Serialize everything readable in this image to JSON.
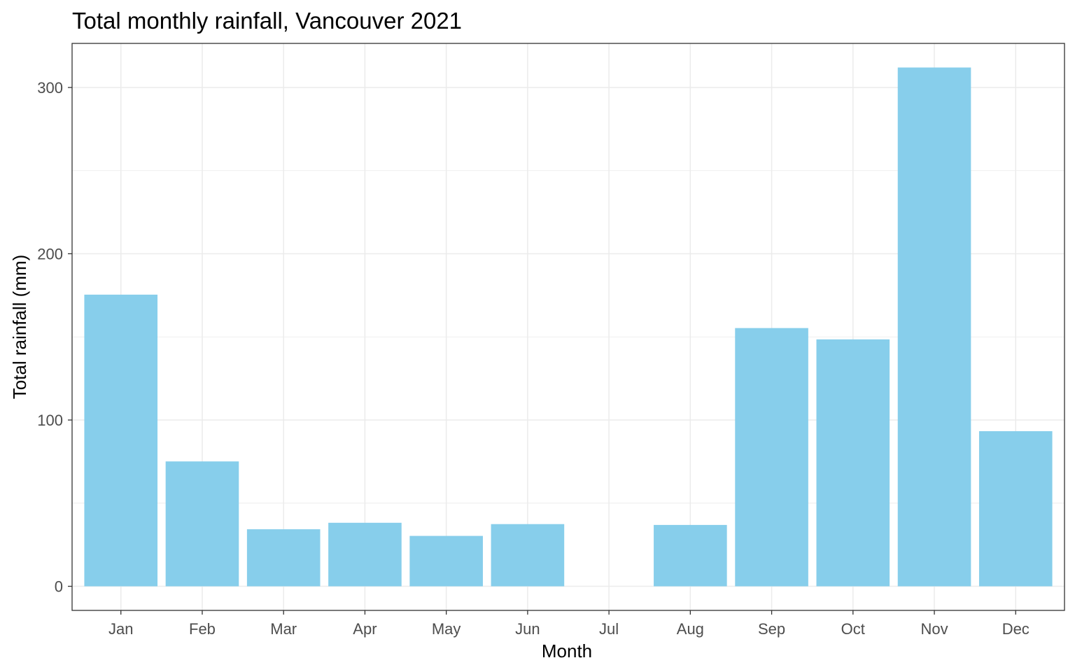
{
  "chart_data": {
    "type": "bar",
    "title": "Total monthly rainfall, Vancouver 2021",
    "xlabel": "Month",
    "ylabel": "Total rainfall (mm)",
    "categories": [
      "Jan",
      "Feb",
      "Mar",
      "Apr",
      "May",
      "Jun",
      "Jul",
      "Aug",
      "Sep",
      "Oct",
      "Nov",
      "Dec"
    ],
    "values": [
      175.4,
      75.1,
      34.3,
      38.2,
      30.3,
      37.4,
      0,
      36.9,
      155.3,
      148.5,
      312.0,
      93.3
    ],
    "ylim": [
      -14.5,
      326.5
    ],
    "yticks": [
      0,
      100,
      200,
      300
    ],
    "ytick_labels": [
      "0",
      "100",
      "200",
      "300"
    ],
    "grid": true,
    "legend": "none",
    "colors": {
      "bar": "#87CEEB",
      "grid": "#EBEBEB",
      "panel_border": "#333333",
      "background": "#FFFFFF"
    }
  }
}
